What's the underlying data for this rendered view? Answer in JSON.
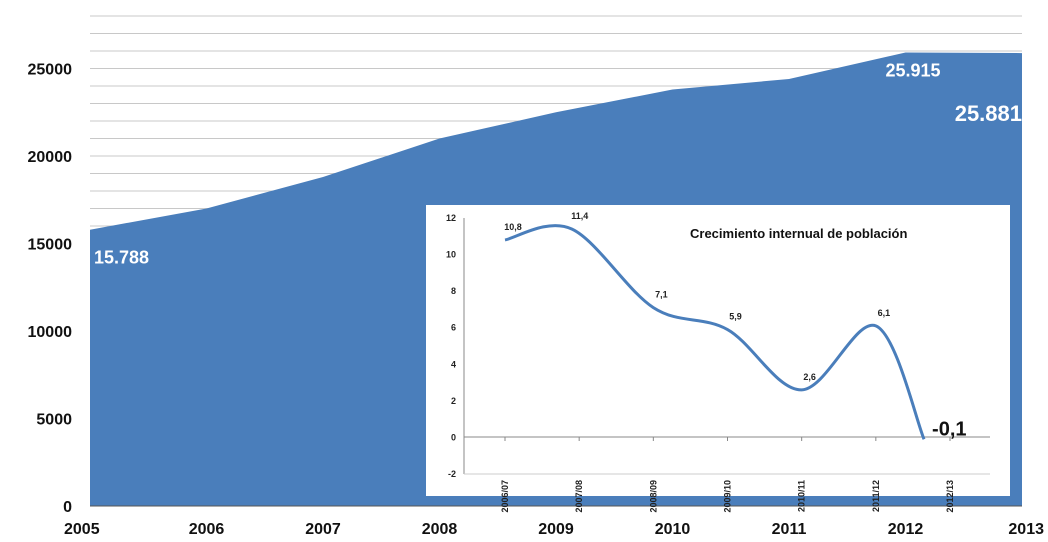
{
  "chart_data": [
    {
      "type": "area",
      "title": "",
      "xlabel": "",
      "ylabel": "",
      "x": [
        "2005",
        "2006",
        "2007",
        "2008",
        "2009",
        "2010",
        "2011",
        "2012",
        "2013"
      ],
      "y_ticks": [
        "0",
        "5000",
        "10000",
        "15000",
        "20000",
        "25000"
      ],
      "ylim": [
        0,
        28000
      ],
      "values": [
        15788,
        17000,
        18800,
        21000,
        22500,
        23800,
        24400,
        25915,
        25881
      ],
      "color": "#4a7ebb",
      "grid": true,
      "data_labels": [
        {
          "index": 0,
          "text": "15.788"
        },
        {
          "index": 7,
          "text": "25.915"
        },
        {
          "index": 8,
          "text": "25.881"
        }
      ]
    },
    {
      "type": "line",
      "title": "Crecimiento internual de población",
      "categories": [
        "2006/07",
        "2007/08",
        "2008/09",
        "2009/10",
        "2010/11",
        "2011/12",
        "2012/13"
      ],
      "y_ticks": [
        "-2",
        "0",
        "2",
        "4",
        "6",
        "8",
        "10",
        "12"
      ],
      "ylim": [
        -2,
        12
      ],
      "points": [
        {
          "x": 0.0,
          "y": 10.8,
          "text": "10,8"
        },
        {
          "x": 0.9,
          "y": 11.4,
          "text": "11,4"
        },
        {
          "x": 2.0,
          "y": 7.1,
          "text": "7,1"
        },
        {
          "x": 3.0,
          "y": 5.9,
          "text": "5,9"
        },
        {
          "x": 4.0,
          "y": 2.6,
          "text": "2,6"
        },
        {
          "x": 5.0,
          "y": 6.1,
          "text": "6,1"
        },
        {
          "x": 5.65,
          "y": -0.1,
          "text": "-0,1"
        }
      ],
      "color": "#4a7ebb"
    }
  ]
}
